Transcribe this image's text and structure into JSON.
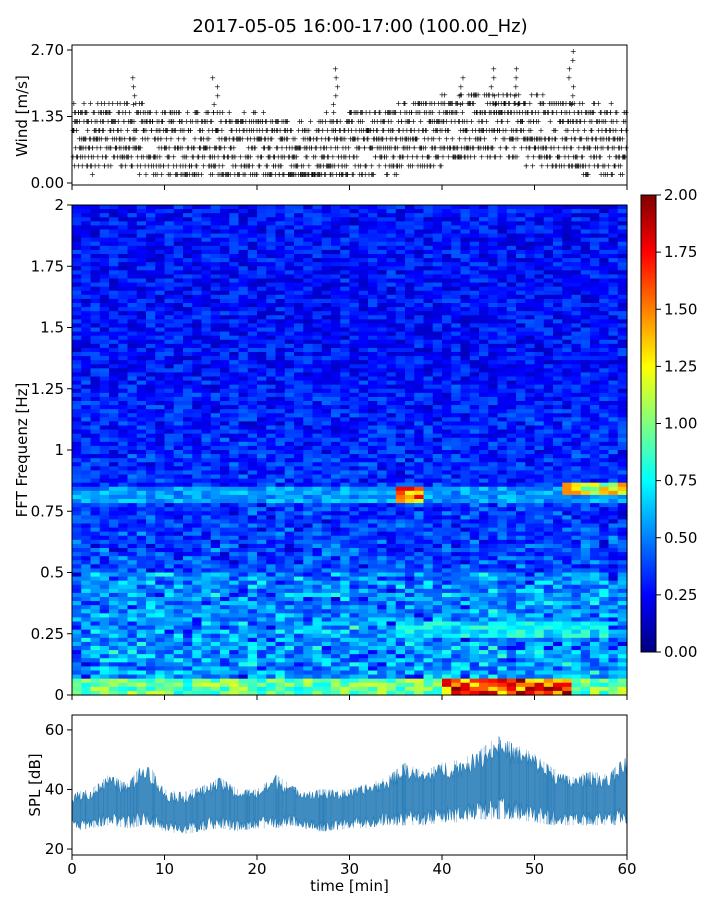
{
  "title": "2017-05-05 16:00-17:00 (100.00_Hz)",
  "chart_data": [
    {
      "type": "scatter",
      "panel": "wind",
      "ylabel": "Wind [m/s]",
      "xlabel": "",
      "xlim": [
        0,
        60
      ],
      "ylim": [
        0,
        2.7
      ],
      "yticks": [
        0.0,
        1.35,
        2.7
      ],
      "ytick_labels": [
        "0.00",
        "1.35",
        "2.70"
      ],
      "xticks": [
        0,
        10,
        20,
        30,
        40,
        50,
        60
      ],
      "marker": "+",
      "color": "#1f77b4",
      "trend": {
        "x": [
          0,
          5,
          10,
          15,
          20,
          25,
          30,
          35,
          40,
          45,
          50,
          55,
          60
        ],
        "y": [
          0.9,
          1.0,
          0.8,
          0.8,
          0.7,
          0.6,
          0.8,
          0.9,
          1.1,
          1.2,
          1.1,
          0.9,
          0.9
        ]
      },
      "peaks": [
        {
          "x": 6.5,
          "y": 2.3
        },
        {
          "x": 15.5,
          "y": 2.2
        },
        {
          "x": 28.5,
          "y": 2.4
        },
        {
          "x": 42,
          "y": 2.3
        },
        {
          "x": 45.5,
          "y": 2.4
        },
        {
          "x": 48,
          "y": 2.4
        },
        {
          "x": 54,
          "y": 2.7
        }
      ]
    },
    {
      "type": "heatmap",
      "panel": "spectrogram",
      "ylabel": "FFT Frequenz [Hz]",
      "xlabel": "",
      "xlim": [
        0,
        60
      ],
      "ylim": [
        0,
        2
      ],
      "yticks": [
        0,
        0.25,
        0.5,
        0.75,
        1,
        1.25,
        1.5,
        1.75,
        2
      ],
      "ytick_labels": [
        "0",
        "0.25",
        "0.5",
        "0.75",
        "1",
        "1.25",
        "1.5",
        "1.75",
        "2"
      ],
      "colormap": "jet",
      "clim": [
        0,
        2
      ],
      "colorbar_ticks": [
        "0.00",
        "0.25",
        "0.50",
        "0.75",
        "1.00",
        "1.25",
        "1.50",
        "1.75",
        "2.00"
      ],
      "features": [
        {
          "freq": 0.82,
          "from_min": 0,
          "to_min": 60,
          "level": 0.7
        },
        {
          "freq": 0.82,
          "from_min": 35,
          "to_min": 38,
          "level": 1.8
        },
        {
          "freq": 0.84,
          "from_min": 53,
          "to_min": 60,
          "level": 1.5
        },
        {
          "freq": 0.27,
          "from_min": 35,
          "to_min": 58,
          "level": 0.9
        },
        {
          "freq": 0.03,
          "from_min": 0,
          "to_min": 60,
          "level": 1.2
        },
        {
          "freq": 0.03,
          "from_min": 40,
          "to_min": 54,
          "level": 2.0
        }
      ]
    },
    {
      "type": "area",
      "panel": "spl",
      "ylabel": "SPL [dB]",
      "xlabel": "time [min]",
      "xlim": [
        0,
        60
      ],
      "ylim": [
        18,
        65
      ],
      "yticks": [
        20,
        40,
        60
      ],
      "ytick_labels": [
        "20",
        "40",
        "60"
      ],
      "xticks": [
        0,
        10,
        20,
        30,
        40,
        50,
        60
      ],
      "xtick_labels": [
        "0",
        "10",
        "20",
        "30",
        "40",
        "50",
        "60"
      ],
      "color": "#1f77b4",
      "series": [
        {
          "x": [
            0,
            2,
            4,
            6,
            8,
            10,
            12,
            14,
            16,
            18,
            20,
            22,
            24,
            26,
            28,
            30,
            32,
            34,
            36,
            38,
            40,
            42,
            44,
            46,
            48,
            50,
            52,
            54,
            56,
            58,
            60
          ],
          "lower": [
            26,
            27,
            28,
            27,
            28,
            26,
            25,
            26,
            27,
            26,
            27,
            27,
            28,
            26,
            26,
            27,
            27,
            28,
            28,
            28,
            29,
            29,
            30,
            30,
            30,
            29,
            28,
            28,
            28,
            28,
            28
          ],
          "upper": [
            39,
            40,
            45,
            42,
            50,
            40,
            39,
            41,
            44,
            40,
            40,
            45,
            41,
            40,
            40,
            40,
            42,
            44,
            49,
            46,
            49,
            50,
            53,
            58,
            55,
            52,
            47,
            44,
            46,
            45,
            52
          ]
        }
      ]
    }
  ]
}
